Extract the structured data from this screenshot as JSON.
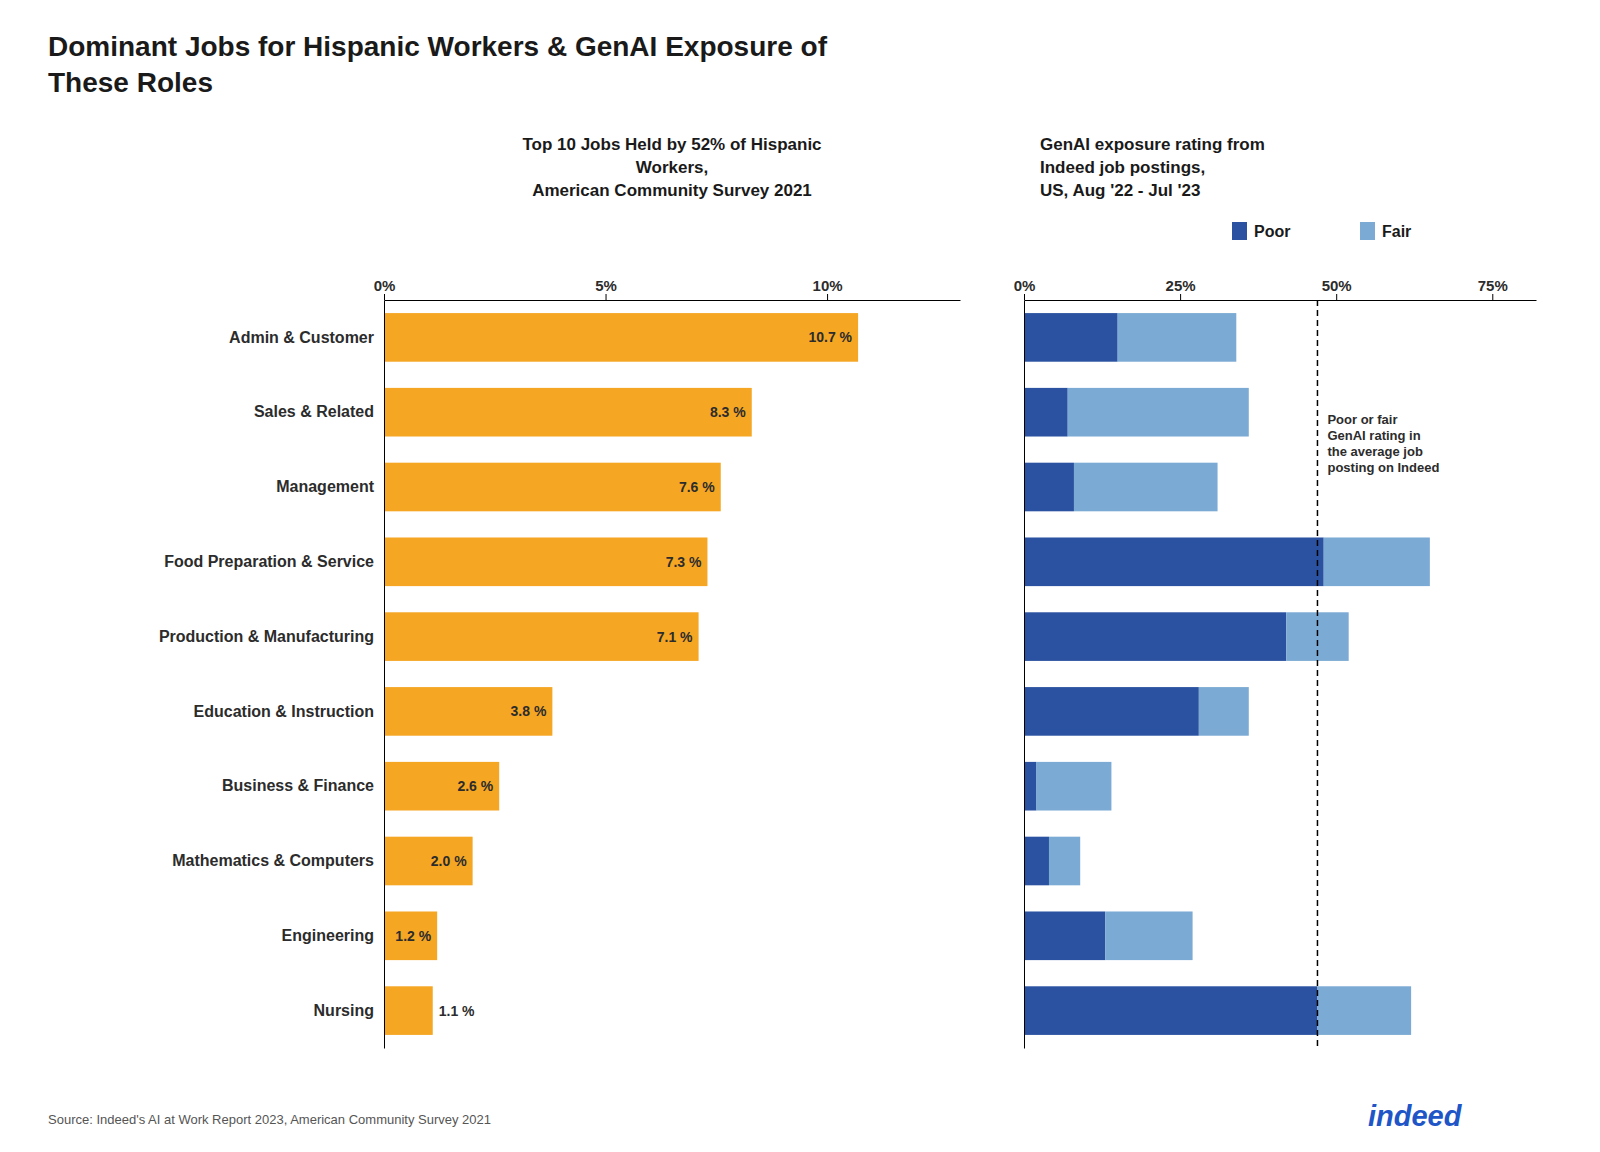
{
  "chart_data": [
    {
      "type": "bar",
      "orientation": "horizontal",
      "title": "Dominant Jobs for Hispanic Workers & GenAI Exposure of\nThese Roles",
      "subtitle": "Top 10 Jobs Held by 52% of Hispanic\nWorkers,\nAmerican Community Survey 2021",
      "categories": [
        "Admin & Customer",
        "Sales & Related",
        "Management",
        "Food Preparation & Service",
        "Production & Manufacturing",
        "Education & Instruction",
        "Business & Finance",
        "Mathematics & Computers",
        "Engineering",
        "Nursing"
      ],
      "values": [
        10.7,
        8.3,
        7.6,
        7.3,
        7.1,
        3.8,
        2.6,
        2.0,
        1.2,
        1.1
      ],
      "value_labels": [
        "10.7 %",
        "8.3 %",
        "7.6 %",
        "7.3 %",
        "7.1 %",
        "3.8 %",
        "2.6 %",
        "2.0 %",
        "1.2 %",
        "1.1 %"
      ],
      "data_labels": true,
      "color": "#F5A623",
      "xlim": [
        0,
        13
      ],
      "xticks": [
        {
          "value": 0,
          "label": "0%"
        },
        {
          "value": 5,
          "label": "5%"
        },
        {
          "value": 10,
          "label": "10%"
        }
      ],
      "grid": false,
      "annotations": [
        {
          "text": "Source: Indeed's AI at Work Report 2023, American Community Survey 2021"
        },
        {
          "text": "indeed"
        }
      ]
    },
    {
      "type": "bar",
      "orientation": "horizontal",
      "stacked": true,
      "subtitle": "GenAI exposure rating from\nIndeed job postings,\nUS, Aug '22 - Jul '23",
      "categories": [
        "Admin & Customer",
        "Sales & Related",
        "Management",
        "Food Preparation & Service",
        "Production & Manufacturing",
        "Education & Instruction",
        "Business & Finance",
        "Mathematics & Computers",
        "Engineering",
        "Nursing"
      ],
      "tick_labels": "x",
      "series": [
        {
          "name": "Poor",
          "color": "#2A52A0",
          "values": [
            15,
            7,
            8,
            48,
            42,
            28,
            2,
            4,
            13,
            47
          ]
        },
        {
          "name": "Fair",
          "color": "#7BAAD4",
          "values": [
            19,
            29,
            23,
            17,
            10,
            8,
            12,
            5,
            14,
            15
          ]
        }
      ],
      "xlim": [
        0,
        82
      ],
      "xticks": [
        {
          "value": 0,
          "label": "0%"
        },
        {
          "value": 25,
          "label": "25%"
        },
        {
          "value": 50,
          "label": "50%"
        },
        {
          "value": 75,
          "label": "75%"
        }
      ],
      "grid": false,
      "legend": "top",
      "annotations": [
        {
          "text": "Poor or fair\nGenAI rating in\nthe average job\nposting on Indeed",
          "x": 47
        }
      ]
    }
  ]
}
